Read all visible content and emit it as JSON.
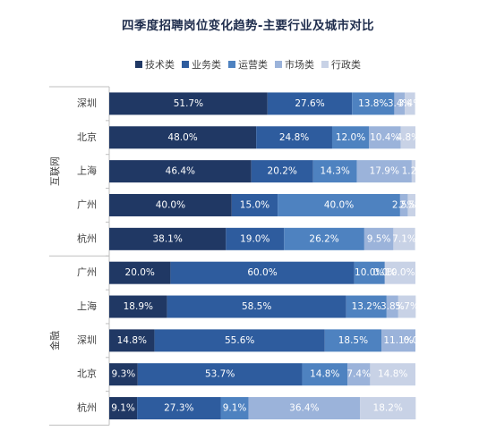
{
  "chart_data": {
    "type": "bar",
    "orientation": "horizontal",
    "stacked": "percent",
    "title": "四季度招聘岗位变化趋势-主要行业及城市对比",
    "xlim": [
      0,
      100
    ],
    "legend_position": "top",
    "colors": [
      "#203864",
      "#2e5c9e",
      "#4e82c0",
      "#9bb3da",
      "#c8d2e6"
    ],
    "label_colors": [
      "#ffffff",
      "#ffffff",
      "#ffffff",
      "#ffffff",
      "#ffffff"
    ],
    "groups": [
      {
        "name": "互联网",
        "categories": [
          "深圳",
          "北京",
          "上海",
          "广州",
          "杭州"
        ]
      },
      {
        "name": "金融",
        "categories": [
          "广州",
          "上海",
          "深圳",
          "北京",
          "杭州"
        ]
      }
    ],
    "series": [
      {
        "name": "技术类",
        "values": [
          51.7,
          48.0,
          46.4,
          40.0,
          38.1,
          20.0,
          18.9,
          14.8,
          9.3,
          9.1
        ],
        "labels": [
          "51.7%",
          "48.0%",
          "46.4%",
          "40.0%",
          "38.1%",
          "20.0%",
          "18.9%",
          "14.8%",
          "9.3%",
          "9.1%"
        ]
      },
      {
        "name": "业务类",
        "values": [
          27.6,
          24.8,
          20.2,
          15.0,
          19.0,
          60.0,
          58.5,
          55.6,
          53.7,
          27.3
        ],
        "labels": [
          "27.6%",
          "24.8%",
          "20.2%",
          "15.0%",
          "19.0%",
          "60.0%",
          "58.5%",
          "55.6%",
          "53.7%",
          "27.3%"
        ]
      },
      {
        "name": "运营类",
        "values": [
          13.8,
          12.0,
          14.3,
          40.0,
          26.2,
          10.0,
          13.2,
          18.5,
          14.8,
          9.1
        ],
        "labels": [
          "13.8%",
          "12.0%",
          "14.3%",
          "40.0%",
          "26.2%",
          "10.0%",
          "13.2%",
          "18.5%",
          "14.8%",
          "9.1%"
        ]
      },
      {
        "name": "市场类",
        "values": [
          3.4,
          10.4,
          17.9,
          2.5,
          9.5,
          0.0,
          3.8,
          11.1,
          7.4,
          36.4
        ],
        "labels": [
          "3.4%",
          "10.4%",
          "17.9%",
          "2.5%",
          "9.5%",
          "0.0%",
          "3.8%",
          "11.1%",
          "7.4%",
          "36.4%"
        ]
      },
      {
        "name": "行政类",
        "values": [
          3.4,
          4.8,
          1.2,
          2.5,
          7.1,
          10.0,
          5.7,
          0.0,
          14.8,
          18.2
        ],
        "labels": [
          "3.4%",
          "4.8%",
          "1.2%",
          "2.5%",
          "7.1%",
          "10.0%",
          "5.7%",
          "0.0%",
          "14.8%",
          "18.2%"
        ]
      }
    ]
  }
}
